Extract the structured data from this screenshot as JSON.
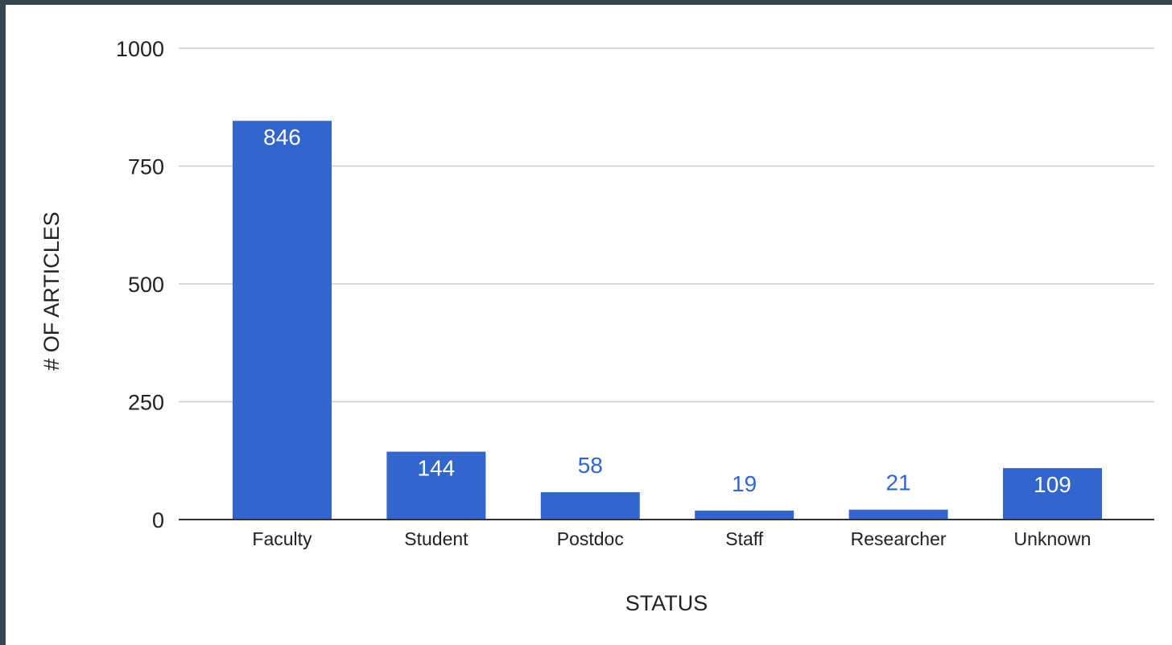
{
  "chart_data": {
    "type": "bar",
    "title": "",
    "xlabel": "STATUS",
    "ylabel": "# OF ARTICLES",
    "categories": [
      "Faculty",
      "Student",
      "Postdoc",
      "Staff",
      "Researcher",
      "Unknown"
    ],
    "values": [
      846,
      144,
      58,
      19,
      21,
      109
    ],
    "data_labels": [
      "846",
      "144",
      "58",
      "19",
      "21",
      "109"
    ],
    "ylim": [
      0,
      1000
    ],
    "yticks": [
      0,
      250,
      500,
      750,
      1000
    ],
    "ytick_labels": [
      "0",
      "250",
      "500",
      "750",
      "1000"
    ],
    "grid": true,
    "legend": "none",
    "colors": {
      "bar": "#3366cc",
      "label_inside": "#ffffff",
      "label_outside": "#3366cc",
      "gridline": "#cccccc",
      "axis": "#333333",
      "frame": "#37474f",
      "background": "#ffffff"
    }
  }
}
